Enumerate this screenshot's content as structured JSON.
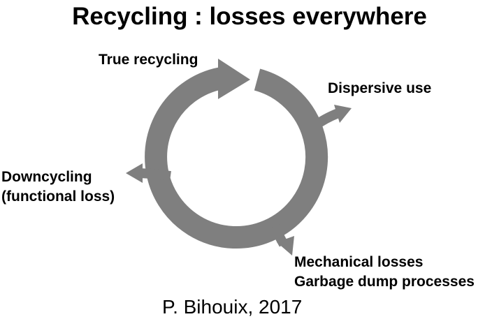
{
  "title": "Recycling : losses everywhere",
  "colors": {
    "arrow": "#7f7f7f",
    "text": "#000000",
    "background": "#ffffff"
  },
  "labels": {
    "true_recycling": "True recycling",
    "dispersive_use": "Dispersive use",
    "downcycling": [
      "Downcycling",
      "(functional loss)"
    ],
    "mechanical": [
      "Mechanical losses",
      "Garbage dump processes"
    ]
  },
  "credit": "P. Bihouix, 2017"
}
